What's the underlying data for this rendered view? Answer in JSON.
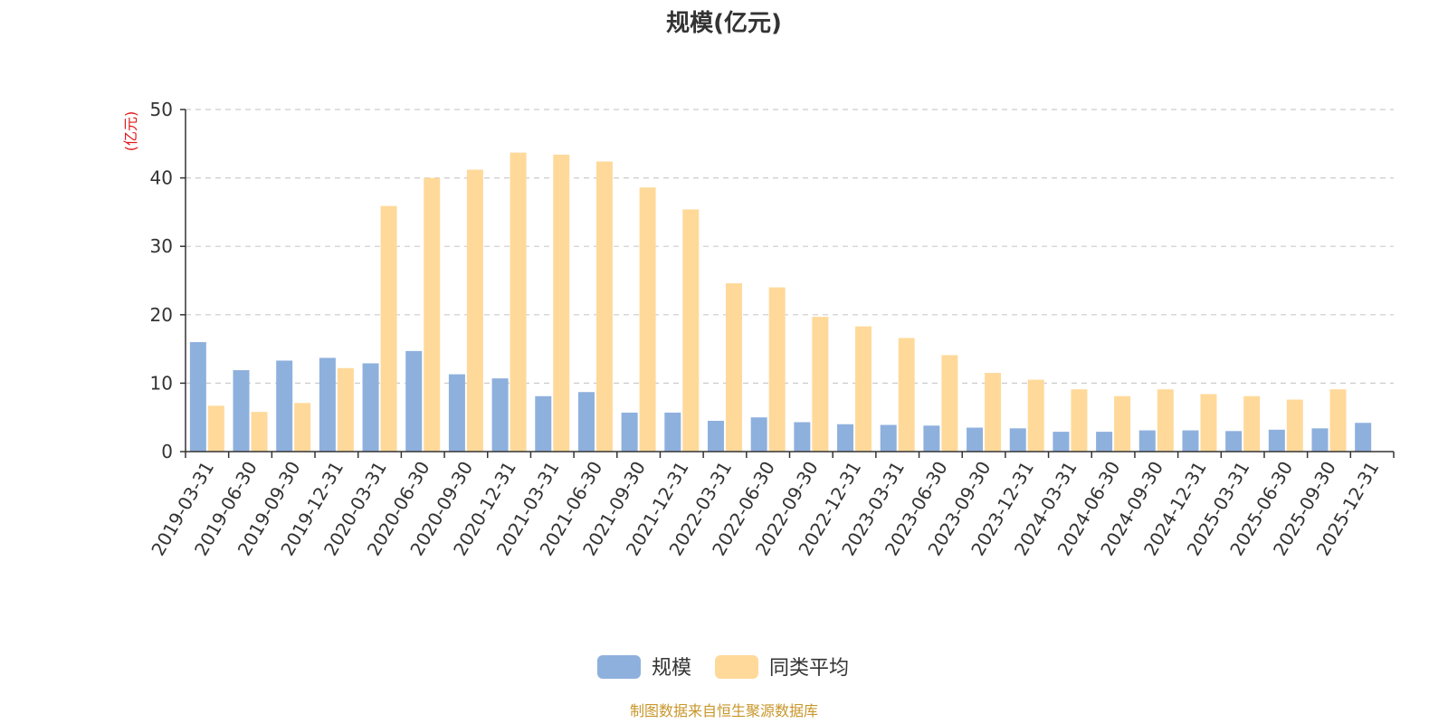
{
  "chart_data": {
    "type": "bar",
    "title": "规模(亿元)",
    "ylabel": "(亿元)",
    "xlabel": "",
    "ylim": [
      0,
      50
    ],
    "yticks": [
      0,
      10,
      20,
      30,
      40,
      50
    ],
    "grid": true,
    "legend_position": "bottom",
    "categories": [
      "2019-03-31",
      "2019-06-30",
      "2019-09-30",
      "2019-12-31",
      "2020-03-31",
      "2020-06-30",
      "2020-09-30",
      "2020-12-31",
      "2021-03-31",
      "2021-06-30",
      "2021-09-30",
      "2021-12-31",
      "2022-03-31",
      "2022-06-30",
      "2022-09-30",
      "2022-12-31",
      "2023-03-31",
      "2023-06-30",
      "2023-09-30",
      "2023-12-31",
      "2024-03-31",
      "2024-06-30",
      "2024-09-30",
      "2024-12-31",
      "2025-03-31",
      "2025-06-30",
      "2025-09-30",
      "2025-12-31"
    ],
    "series": [
      {
        "name": "规模",
        "color": "#8eb0dd",
        "values": [
          16.0,
          11.9,
          13.3,
          13.7,
          12.9,
          14.7,
          11.3,
          10.7,
          8.1,
          8.7,
          5.7,
          5.7,
          4.5,
          5.0,
          4.3,
          4.0,
          3.9,
          3.8,
          3.5,
          3.4,
          2.9,
          2.9,
          3.1,
          3.1,
          3.0,
          3.2,
          3.4,
          4.2
        ]
      },
      {
        "name": "同类平均",
        "color": "#ffd99a",
        "values": [
          6.7,
          5.8,
          7.1,
          12.2,
          35.9,
          40.0,
          41.2,
          43.7,
          43.4,
          42.4,
          38.6,
          35.4,
          24.6,
          24.0,
          19.7,
          18.3,
          16.6,
          14.1,
          11.5,
          10.5,
          9.1,
          8.1,
          9.1,
          8.4,
          8.1,
          7.6,
          9.1,
          null
        ]
      }
    ]
  },
  "source_note": "制图数据来自恒生聚源数据库"
}
